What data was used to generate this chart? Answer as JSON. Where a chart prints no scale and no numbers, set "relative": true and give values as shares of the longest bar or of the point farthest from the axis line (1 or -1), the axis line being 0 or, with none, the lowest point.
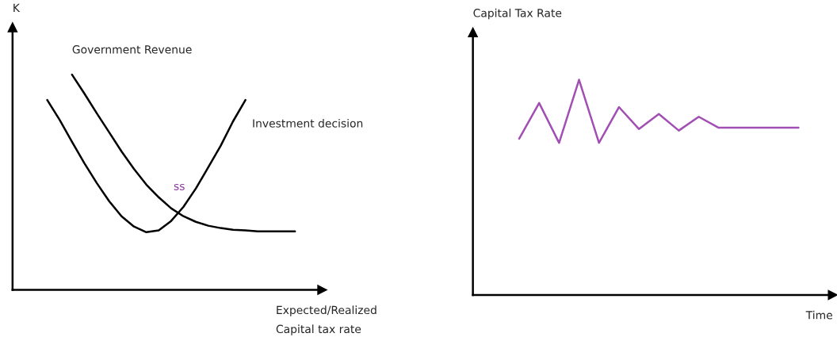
{
  "chart_data": [
    {
      "type": "line",
      "relative": true,
      "ylabel": "K",
      "xlabel": "Expected/Realized\nCapital tax rate",
      "marker": "none",
      "line_style": "solid",
      "categories": [
        null,
        null,
        null,
        null,
        null,
        null,
        null,
        null,
        null,
        null,
        null,
        null,
        null,
        null,
        null,
        null,
        null,
        null,
        null,
        null,
        null
      ],
      "series": [
        {
          "name": "Investment decision",
          "color": "#000000",
          "values": [
            0.882,
            0.79,
            0.688,
            0.588,
            0.496,
            0.412,
            0.342,
            0.294,
            0.268,
            0.276,
            0.32,
            0.386,
            0.471,
            0.57,
            0.669,
            0.783,
            0.882,
            null,
            null,
            null,
            null
          ]
        },
        {
          "name": "Government Revenue",
          "color": "#000000",
          "values": [
            null,
            null,
            1.0,
            0.912,
            0.82,
            0.732,
            0.643,
            0.562,
            0.489,
            0.43,
            0.379,
            0.342,
            0.316,
            0.298,
            0.287,
            0.279,
            0.276,
            0.272,
            0.272,
            0.272,
            0.272
          ]
        }
      ],
      "annotations": [
        "ss"
      ]
    },
    {
      "type": "line",
      "relative": true,
      "ylabel": "Capital Tax Rate",
      "xlabel": "Time",
      "marker": "none",
      "line_style": "solid",
      "categories": [
        null,
        null,
        null,
        null,
        null,
        null,
        null,
        null,
        null,
        null,
        null,
        null,
        null,
        null,
        null
      ],
      "series": [
        {
          "color": "#a24fb3",
          "values": [
            0.726,
            0.892,
            0.707,
            1.0,
            0.707,
            0.873,
            0.771,
            0.841,
            0.764,
            0.828,
            0.777,
            0.777,
            0.777,
            0.777,
            0.777
          ]
        }
      ]
    }
  ]
}
